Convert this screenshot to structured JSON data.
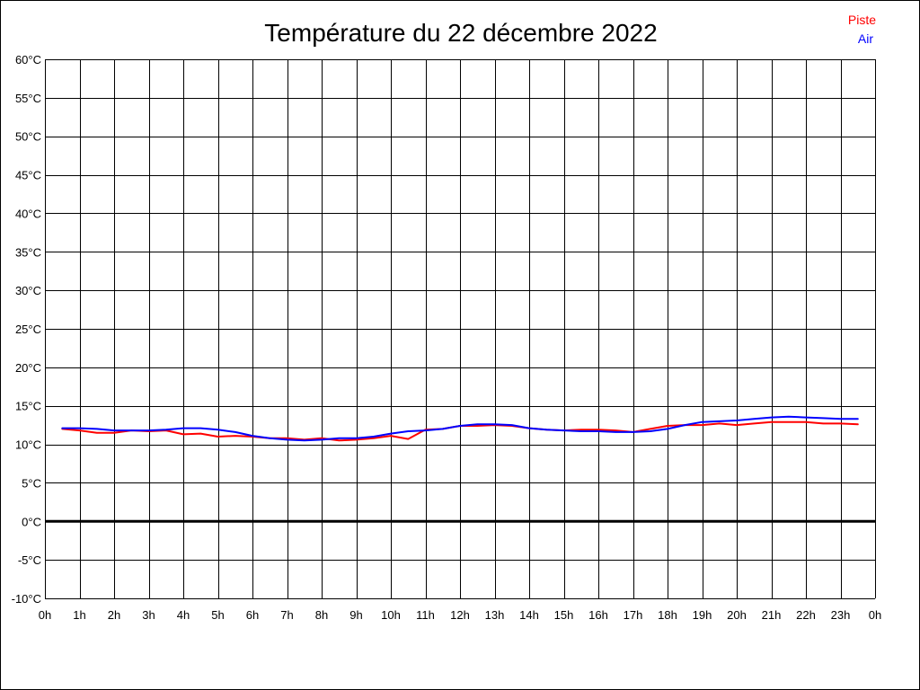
{
  "chart_data": {
    "type": "line",
    "title": "Température du 22 décembre 2022",
    "xlabel": "",
    "ylabel": "",
    "x_ticks": [
      "0h",
      "1h",
      "2h",
      "3h",
      "4h",
      "5h",
      "6h",
      "7h",
      "8h",
      "9h",
      "10h",
      "11h",
      "12h",
      "13h",
      "14h",
      "15h",
      "16h",
      "17h",
      "18h",
      "19h",
      "20h",
      "21h",
      "22h",
      "23h",
      "0h"
    ],
    "xlim": [
      0,
      24
    ],
    "y_ticks": [
      "-10°C",
      "-5°C",
      "0°C",
      "5°C",
      "10°C",
      "15°C",
      "20°C",
      "25°C",
      "30°C",
      "35°C",
      "40°C",
      "45°C",
      "50°C",
      "55°C",
      "60°C"
    ],
    "ylim": [
      -10,
      60
    ],
    "grid": true,
    "legend_position": "top-right",
    "zero_line": 0,
    "series": [
      {
        "name": "Piste",
        "color": "#ff0000",
        "x": [
          0.5,
          1.0,
          1.5,
          2.0,
          2.5,
          3.0,
          3.5,
          4.0,
          4.5,
          5.0,
          5.5,
          6.0,
          6.5,
          7.0,
          7.5,
          8.0,
          8.5,
          9.0,
          9.5,
          10.0,
          10.5,
          11.0,
          11.5,
          12.0,
          12.5,
          13.0,
          13.5,
          14.0,
          14.5,
          15.0,
          15.5,
          16.0,
          16.5,
          17.0,
          17.5,
          18.0,
          18.5,
          19.0,
          19.5,
          20.0,
          20.5,
          21.0,
          21.5,
          22.0,
          22.5,
          23.0,
          23.5
        ],
        "y": [
          12.0,
          11.8,
          11.5,
          11.5,
          11.8,
          11.7,
          11.8,
          11.3,
          11.4,
          11.0,
          11.1,
          11.0,
          10.8,
          10.8,
          10.6,
          10.8,
          10.5,
          10.6,
          10.8,
          11.1,
          10.7,
          11.9,
          12.0,
          12.4,
          12.4,
          12.5,
          12.4,
          12.1,
          11.9,
          11.8,
          11.9,
          11.9,
          11.8,
          11.6,
          12.0,
          12.4,
          12.5,
          12.5,
          12.7,
          12.5,
          12.7,
          12.9,
          12.9,
          12.9,
          12.7,
          12.7,
          12.6
        ]
      },
      {
        "name": "Air",
        "color": "#0000ff",
        "x": [
          0.5,
          1.0,
          1.5,
          2.0,
          2.5,
          3.0,
          3.5,
          4.0,
          4.5,
          5.0,
          5.5,
          6.0,
          6.5,
          7.0,
          7.5,
          8.0,
          8.5,
          9.0,
          9.5,
          10.0,
          10.5,
          11.0,
          11.5,
          12.0,
          12.5,
          13.0,
          13.5,
          14.0,
          14.5,
          15.0,
          15.5,
          16.0,
          16.5,
          17.0,
          17.5,
          18.0,
          18.5,
          19.0,
          19.5,
          20.0,
          20.5,
          21.0,
          21.5,
          22.0,
          22.5,
          23.0,
          23.5
        ],
        "y": [
          12.1,
          12.1,
          12.0,
          11.8,
          11.8,
          11.8,
          11.9,
          12.1,
          12.1,
          11.9,
          11.6,
          11.1,
          10.8,
          10.6,
          10.5,
          10.6,
          10.8,
          10.8,
          11.0,
          11.4,
          11.7,
          11.8,
          12.0,
          12.4,
          12.6,
          12.6,
          12.5,
          12.1,
          11.9,
          11.8,
          11.7,
          11.7,
          11.6,
          11.6,
          11.7,
          12.0,
          12.5,
          12.9,
          13.0,
          13.1,
          13.3,
          13.5,
          13.6,
          13.5,
          13.4,
          13.3,
          13.3
        ]
      }
    ]
  }
}
